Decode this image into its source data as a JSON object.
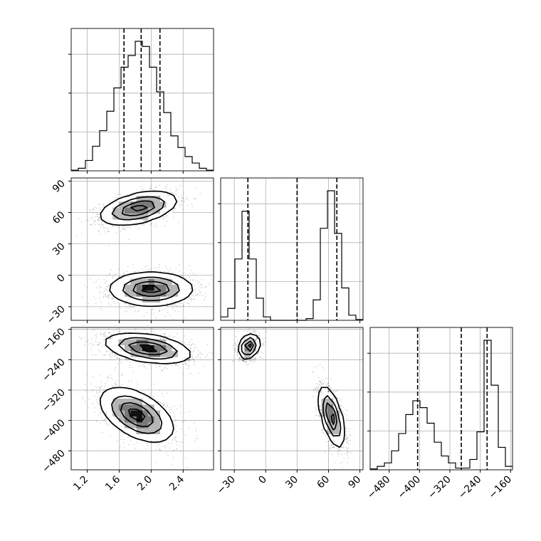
{
  "chart_data": {
    "type": "corner",
    "parameters": [
      "",
      "",
      ""
    ],
    "grid": true,
    "colors": {
      "line": "#000000",
      "grid": "#b0b0b0",
      "scatter": "#000000",
      "frame": "#000000"
    },
    "axes": [
      {
        "range": [
          1.0,
          2.78
        ],
        "ticks": [
          1.2,
          1.6,
          2.0,
          2.4
        ],
        "tick_labels": [
          "1.2",
          "1.6",
          "2.0",
          "2.4"
        ]
      },
      {
        "range": [
          -43,
          93
        ],
        "ticks": [
          -30,
          0,
          30,
          60,
          90
        ],
        "tick_labels": [
          "−30",
          "0",
          "30",
          "60",
          "90"
        ]
      },
      {
        "range": [
          -530,
          -155
        ],
        "ticks": [
          -480,
          -400,
          -320,
          -240,
          -160
        ],
        "tick_labels": [
          "−480",
          "−400",
          "−320",
          "−240",
          "−160"
        ]
      }
    ],
    "histograms": [
      {
        "param": 0,
        "bin_edges": [
          1.0,
          1.089,
          1.178,
          1.267,
          1.356,
          1.445,
          1.534,
          1.623,
          1.712,
          1.801,
          1.89,
          1.979,
          2.068,
          2.157,
          2.246,
          2.335,
          2.424,
          2.513,
          2.602,
          2.691,
          2.78
        ],
        "counts": [
          0.5,
          2,
          8,
          19,
          31,
          46,
          64,
          80,
          89,
          100,
          96,
          80,
          61,
          45,
          27,
          18,
          11,
          6,
          2,
          0.5
        ],
        "quantiles": [
          1.66,
          1.875,
          2.11
        ]
      },
      {
        "param": 1,
        "bin_edges": [
          -43,
          -36.2,
          -29.4,
          -22.6,
          -15.8,
          -9.0,
          -2.2,
          4.6,
          11.4,
          18.2,
          25.0,
          31.8,
          38.6,
          45.4,
          52.2,
          59.0,
          65.8,
          72.6,
          79.4,
          86.2,
          93.0
        ],
        "counts": [
          2,
          7,
          36,
          64,
          36,
          13,
          2,
          0,
          0,
          0,
          0,
          0,
          1,
          12,
          54,
          76,
          51,
          19,
          3,
          0.5
        ],
        "quantiles": [
          -17,
          30,
          68
        ]
      },
      {
        "param": 2,
        "bin_edges": [
          -530,
          -511.25,
          -492.5,
          -473.75,
          -455,
          -436.25,
          -417.5,
          -398.75,
          -380,
          -361.25,
          -342.5,
          -323.75,
          -305,
          -286.25,
          -267.5,
          -248.75,
          -230,
          -211.25,
          -192.5,
          -173.75,
          -155
        ],
        "counts": [
          0.5,
          2,
          4,
          11,
          21,
          32,
          40,
          36,
          27,
          16,
          8,
          4,
          1,
          1,
          6,
          22,
          75,
          49,
          13,
          2
        ],
        "quantiles": [
          -405,
          -290,
          -222
        ]
      }
    ],
    "clusters_2d": [
      {
        "x": 0,
        "y": 1,
        "modes": [
          {
            "cx": 1.84,
            "cy": 64,
            "sx": 0.24,
            "sy": 8,
            "rho": 0.45,
            "n": 1800
          },
          {
            "cx": 2.0,
            "cy": -13,
            "sx": 0.26,
            "sy": 8,
            "rho": 0.0,
            "n": 1800
          }
        ]
      },
      {
        "x": 0,
        "y": 2,
        "modes": [
          {
            "cx": 1.96,
            "cy": -210,
            "sx": 0.27,
            "sy": 20,
            "rho": -0.4,
            "n": 1800
          },
          {
            "cx": 1.82,
            "cy": -385,
            "sx": 0.23,
            "sy": 36,
            "rho": -0.5,
            "n": 1800
          }
        ]
      },
      {
        "x": 1,
        "y": 2,
        "modes": [
          {
            "cx": -16,
            "cy": -205,
            "sx": 5,
            "sy": 16,
            "rho": 0.25,
            "n": 1700
          },
          {
            "cx": 63,
            "cy": -390,
            "sx": 6,
            "sy": 40,
            "rho": -0.6,
            "n": 1700
          }
        ]
      }
    ]
  }
}
